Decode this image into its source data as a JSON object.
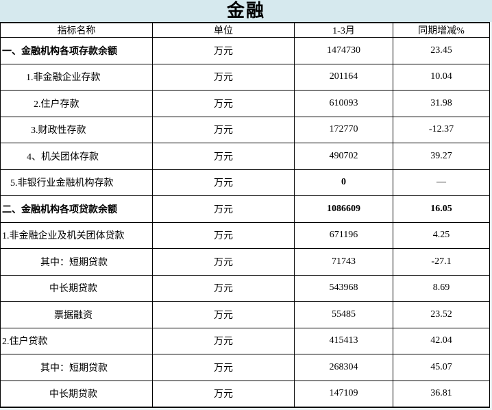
{
  "title": "金融",
  "colors": {
    "title_background": "#d6e9ee",
    "page_background": "#e9f3f5",
    "cell_background": "#ffffff",
    "border": "#000000",
    "text": "#000000"
  },
  "table": {
    "columns": [
      {
        "label": "指标名称"
      },
      {
        "label": "单位"
      },
      {
        "label": "1-3月"
      },
      {
        "label": "同期增减%"
      }
    ],
    "rows": [
      {
        "name": "一、金融机构各项存款余额",
        "unit": "万元",
        "value": "1474730",
        "change": "23.45",
        "name_bold": true,
        "value_bold": false,
        "change_bold": false,
        "indent": 2
      },
      {
        "name": "1.非金融企业存款",
        "unit": "万元",
        "value": "201164",
        "change": "10.04",
        "name_bold": false,
        "value_bold": false,
        "change_bold": false,
        "indent": 37
      },
      {
        "name": "2.住户存款",
        "unit": "万元",
        "value": "610093",
        "change": "31.98",
        "name_bold": false,
        "value_bold": false,
        "change_bold": false,
        "indent": 48
      },
      {
        "name": "3.财政性存款",
        "unit": "万元",
        "value": "172770",
        "change": "-12.37",
        "name_bold": false,
        "value_bold": false,
        "change_bold": false,
        "indent": 44
      },
      {
        "name": "4、机关团体存款",
        "unit": "万元",
        "value": "490702",
        "change": "39.27",
        "name_bold": false,
        "value_bold": false,
        "change_bold": false,
        "indent": 38
      },
      {
        "name": "5.非银行业金融机构存款",
        "unit": "万元",
        "value": "0",
        "change": "—",
        "name_bold": false,
        "value_bold": true,
        "change_bold": false,
        "indent": 14
      },
      {
        "name": "二、金融机构各项贷款余额",
        "unit": "万元",
        "value": "1086609",
        "change": "16.05",
        "name_bold": true,
        "value_bold": true,
        "change_bold": true,
        "indent": 2
      },
      {
        "name": "1.非金融企业及机关团体贷款",
        "unit": "万元",
        "value": "671196",
        "change": "4.25",
        "name_bold": false,
        "value_bold": false,
        "change_bold": false,
        "indent": 2
      },
      {
        "name": "其中：短期贷款",
        "unit": "万元",
        "value": "71743",
        "change": "-27.1",
        "name_bold": false,
        "value_bold": false,
        "change_bold": false,
        "indent": 58
      },
      {
        "name": "中长期贷款",
        "unit": "万元",
        "value": "543968",
        "change": "8.69",
        "name_bold": false,
        "value_bold": false,
        "change_bold": false,
        "indent": 71
      },
      {
        "name": "票据融资",
        "unit": "万元",
        "value": "55485",
        "change": "23.52",
        "name_bold": false,
        "value_bold": false,
        "change_bold": false,
        "indent": 78
      },
      {
        "name": "2.住户贷款",
        "unit": "万元",
        "value": "415413",
        "change": "42.04",
        "name_bold": false,
        "value_bold": false,
        "change_bold": false,
        "indent": 2
      },
      {
        "name": "其中：短期贷款",
        "unit": "万元",
        "value": "268304",
        "change": "45.07",
        "name_bold": false,
        "value_bold": false,
        "change_bold": false,
        "indent": 58
      },
      {
        "name": "中长期贷款",
        "unit": "万元",
        "value": "147109",
        "change": "36.81",
        "name_bold": false,
        "value_bold": false,
        "change_bold": false,
        "indent": 71
      }
    ]
  }
}
